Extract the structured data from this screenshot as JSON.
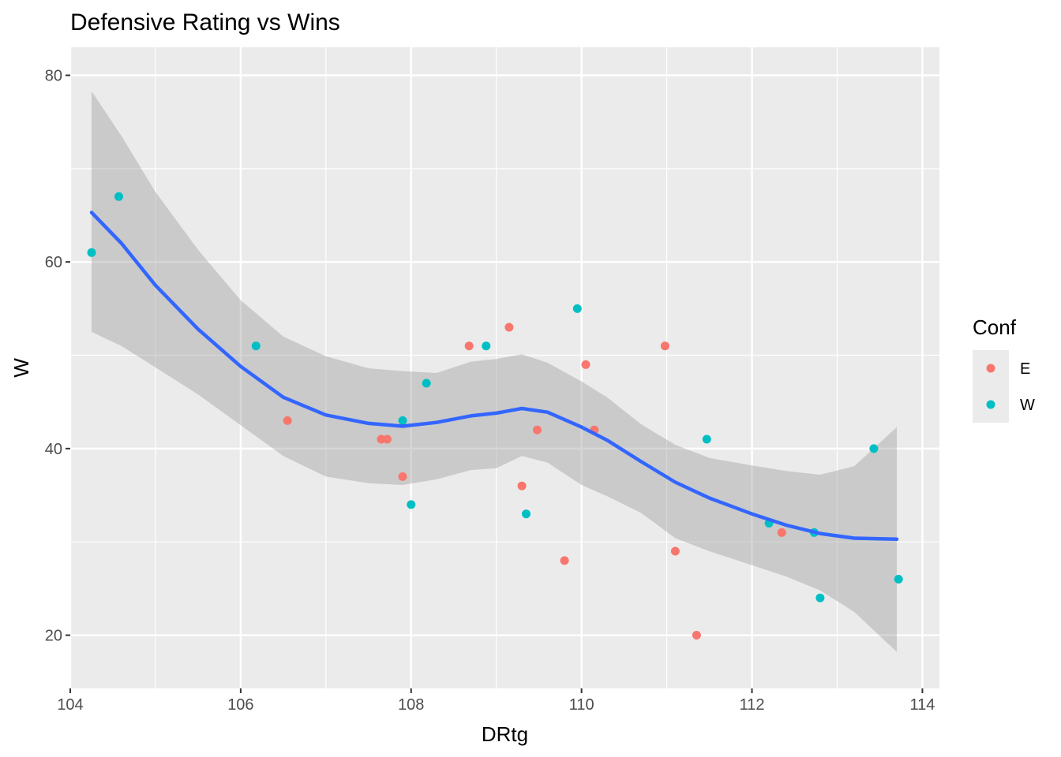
{
  "chart_data": {
    "type": "scatter",
    "title": "Defensive Rating vs Wins",
    "xlabel": "DRtg",
    "ylabel": "W",
    "xlim": [
      104.0,
      114.2
    ],
    "ylim": [
      14.3,
      83.0
    ],
    "x_ticks": [
      "104",
      "106",
      "108",
      "110",
      "112",
      "114"
    ],
    "y_ticks": [
      "20",
      "40",
      "60",
      "80"
    ],
    "grid": true,
    "legend_position": "right",
    "legend": {
      "title": "Conf",
      "entries": [
        {
          "label": "E",
          "color": "#f8766d"
        },
        {
          "label": "W",
          "color": "#00bfc4"
        }
      ]
    },
    "series": [
      {
        "name": "E",
        "color": "#f8766d",
        "points": [
          {
            "x": 106.55,
            "y": 43
          },
          {
            "x": 107.65,
            "y": 41
          },
          {
            "x": 107.72,
            "y": 41
          },
          {
            "x": 107.9,
            "y": 37
          },
          {
            "x": 108.68,
            "y": 51
          },
          {
            "x": 109.15,
            "y": 53
          },
          {
            "x": 109.3,
            "y": 36
          },
          {
            "x": 109.48,
            "y": 42
          },
          {
            "x": 109.8,
            "y": 28
          },
          {
            "x": 110.05,
            "y": 49
          },
          {
            "x": 110.15,
            "y": 42
          },
          {
            "x": 110.98,
            "y": 51
          },
          {
            "x": 111.1,
            "y": 29
          },
          {
            "x": 111.35,
            "y": 20
          },
          {
            "x": 112.35,
            "y": 31
          }
        ]
      },
      {
        "name": "W",
        "color": "#00bfc4",
        "points": [
          {
            "x": 104.25,
            "y": 61
          },
          {
            "x": 104.57,
            "y": 67
          },
          {
            "x": 106.18,
            "y": 51
          },
          {
            "x": 107.9,
            "y": 43
          },
          {
            "x": 108.0,
            "y": 34
          },
          {
            "x": 108.18,
            "y": 47
          },
          {
            "x": 108.88,
            "y": 51
          },
          {
            "x": 109.35,
            "y": 33
          },
          {
            "x": 109.95,
            "y": 55
          },
          {
            "x": 111.47,
            "y": 41
          },
          {
            "x": 112.2,
            "y": 32
          },
          {
            "x": 112.73,
            "y": 31
          },
          {
            "x": 112.8,
            "y": 24
          },
          {
            "x": 113.43,
            "y": 40
          },
          {
            "x": 113.72,
            "y": 26
          }
        ]
      }
    ],
    "smooth": {
      "method": "loess",
      "color": "#3366ff",
      "band_color": "#999999",
      "x": [
        104.25,
        104.6,
        105.0,
        105.5,
        106.0,
        106.5,
        107.0,
        107.5,
        107.9,
        108.3,
        108.7,
        109.0,
        109.3,
        109.6,
        110.0,
        110.3,
        110.7,
        111.1,
        111.5,
        112.0,
        112.4,
        112.8,
        113.2,
        113.7
      ],
      "fit": [
        65.3,
        62.0,
        57.5,
        52.8,
        48.8,
        45.5,
        43.6,
        42.7,
        42.4,
        42.8,
        43.5,
        43.8,
        44.3,
        43.9,
        42.3,
        40.9,
        38.6,
        36.4,
        34.7,
        33.0,
        31.8,
        30.9,
        30.4,
        30.3
      ],
      "upper": [
        78.3,
        73.5,
        67.5,
        61.3,
        55.9,
        52.0,
        49.9,
        48.6,
        48.3,
        48.1,
        49.3,
        49.6,
        50.1,
        49.2,
        47.2,
        45.5,
        42.6,
        40.4,
        39.0,
        38.2,
        37.6,
        37.2,
        38.1,
        42.3
      ],
      "lower": [
        52.5,
        51.0,
        48.7,
        45.8,
        42.5,
        39.2,
        37.0,
        36.3,
        36.1,
        36.7,
        37.7,
        37.9,
        39.2,
        38.5,
        36.1,
        34.9,
        33.1,
        30.4,
        29.0,
        27.5,
        26.3,
        24.8,
        22.5,
        18.2
      ]
    }
  }
}
